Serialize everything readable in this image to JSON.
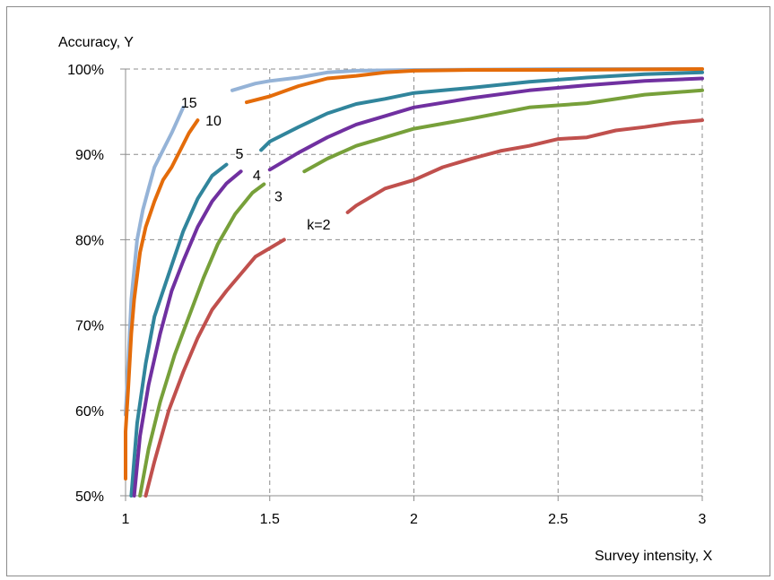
{
  "chart_data": {
    "type": "line",
    "xlabel": "Survey intensity, X",
    "ylabel": "Accuracy, Y",
    "xlim": [
      1,
      3
    ],
    "ylim": [
      0.5,
      1.0
    ],
    "x_ticks": [
      "1",
      "1.5",
      "2",
      "2.5",
      "3"
    ],
    "y_ticks": [
      "50%",
      "60%",
      "70%",
      "80%",
      "90%",
      "100%"
    ],
    "grid": "dashed",
    "legend": "inline labels",
    "series": [
      {
        "name": "15",
        "label_text": "15",
        "color": "#95B3D7",
        "points": [
          [
            1.0,
            0.595
          ],
          [
            1.01,
            0.66
          ],
          [
            1.02,
            0.73
          ],
          [
            1.04,
            0.8
          ],
          [
            1.06,
            0.835
          ],
          [
            1.08,
            0.86
          ],
          [
            1.1,
            0.885
          ],
          [
            1.13,
            0.905
          ],
          [
            1.16,
            0.925
          ],
          [
            1.18,
            0.94
          ],
          [
            1.2,
            0.955
          ]
        ],
        "points_b": [
          [
            1.37,
            0.975
          ],
          [
            1.45,
            0.983
          ],
          [
            1.5,
            0.986
          ],
          [
            1.6,
            0.99
          ],
          [
            1.7,
            0.996
          ],
          [
            1.8,
            0.998
          ],
          [
            2.0,
            0.999
          ],
          [
            2.5,
            1.0
          ],
          [
            3.0,
            1.0
          ]
        ]
      },
      {
        "name": "10",
        "label_text": "10",
        "color": "#E46C0A",
        "points": [
          [
            1.0,
            0.52
          ],
          [
            1.0,
            0.575
          ],
          [
            1.01,
            0.63
          ],
          [
            1.02,
            0.69
          ],
          [
            1.03,
            0.73
          ],
          [
            1.05,
            0.785
          ],
          [
            1.07,
            0.815
          ],
          [
            1.1,
            0.845
          ],
          [
            1.13,
            0.87
          ],
          [
            1.16,
            0.885
          ],
          [
            1.19,
            0.905
          ],
          [
            1.22,
            0.925
          ],
          [
            1.25,
            0.94
          ]
        ],
        "points_b": [
          [
            1.42,
            0.961
          ],
          [
            1.5,
            0.968
          ],
          [
            1.6,
            0.98
          ],
          [
            1.7,
            0.989
          ],
          [
            1.8,
            0.992
          ],
          [
            1.9,
            0.996
          ],
          [
            2.0,
            0.998
          ],
          [
            2.2,
            0.999
          ],
          [
            2.5,
            0.999
          ],
          [
            3.0,
            1.0
          ]
        ]
      },
      {
        "name": "5",
        "label_text": "5",
        "color": "#31859C",
        "points": [
          [
            1.02,
            0.5
          ],
          [
            1.04,
            0.585
          ],
          [
            1.07,
            0.655
          ],
          [
            1.1,
            0.71
          ],
          [
            1.15,
            0.76
          ],
          [
            1.2,
            0.81
          ],
          [
            1.25,
            0.848
          ],
          [
            1.3,
            0.875
          ],
          [
            1.35,
            0.888
          ]
        ],
        "points_b": [
          [
            1.47,
            0.905
          ],
          [
            1.5,
            0.915
          ],
          [
            1.6,
            0.932
          ],
          [
            1.7,
            0.948
          ],
          [
            1.8,
            0.959
          ],
          [
            1.9,
            0.965
          ],
          [
            2.0,
            0.972
          ],
          [
            2.2,
            0.978
          ],
          [
            2.4,
            0.985
          ],
          [
            2.6,
            0.99
          ],
          [
            2.8,
            0.994
          ],
          [
            3.0,
            0.996
          ]
        ]
      },
      {
        "name": "4",
        "label_text": "4",
        "color": "#7030A0",
        "points": [
          [
            1.03,
            0.5
          ],
          [
            1.05,
            0.57
          ],
          [
            1.08,
            0.63
          ],
          [
            1.12,
            0.69
          ],
          [
            1.16,
            0.74
          ],
          [
            1.2,
            0.775
          ],
          [
            1.25,
            0.815
          ],
          [
            1.3,
            0.845
          ],
          [
            1.35,
            0.866
          ],
          [
            1.4,
            0.88
          ]
        ],
        "points_b": [
          [
            1.5,
            0.882
          ],
          [
            1.6,
            0.902
          ],
          [
            1.7,
            0.92
          ],
          [
            1.8,
            0.935
          ],
          [
            1.9,
            0.945
          ],
          [
            2.0,
            0.955
          ],
          [
            2.2,
            0.966
          ],
          [
            2.4,
            0.975
          ],
          [
            2.6,
            0.981
          ],
          [
            2.8,
            0.986
          ],
          [
            3.0,
            0.989
          ]
        ]
      },
      {
        "name": "3",
        "label_text": "3",
        "color": "#77A03A",
        "points": [
          [
            1.05,
            0.5
          ],
          [
            1.08,
            0.555
          ],
          [
            1.12,
            0.61
          ],
          [
            1.17,
            0.665
          ],
          [
            1.22,
            0.71
          ],
          [
            1.27,
            0.755
          ],
          [
            1.32,
            0.795
          ],
          [
            1.38,
            0.83
          ],
          [
            1.44,
            0.855
          ],
          [
            1.48,
            0.865
          ]
        ],
        "points_b": [
          [
            1.62,
            0.88
          ],
          [
            1.7,
            0.895
          ],
          [
            1.8,
            0.91
          ],
          [
            1.9,
            0.92
          ],
          [
            2.0,
            0.93
          ],
          [
            2.2,
            0.942
          ],
          [
            2.4,
            0.955
          ],
          [
            2.6,
            0.96
          ],
          [
            2.8,
            0.97
          ],
          [
            3.0,
            0.975
          ]
        ]
      },
      {
        "name": "k=2",
        "label_text": "k=2",
        "color": "#C0504D",
        "points": [
          [
            1.07,
            0.5
          ],
          [
            1.1,
            0.54
          ],
          [
            1.15,
            0.6
          ],
          [
            1.2,
            0.645
          ],
          [
            1.25,
            0.685
          ],
          [
            1.3,
            0.718
          ],
          [
            1.35,
            0.74
          ],
          [
            1.4,
            0.76
          ],
          [
            1.45,
            0.78
          ],
          [
            1.5,
            0.79
          ],
          [
            1.55,
            0.8
          ]
        ],
        "points_b": [
          [
            1.77,
            0.832
          ],
          [
            1.8,
            0.84
          ],
          [
            1.9,
            0.86
          ],
          [
            2.0,
            0.87
          ],
          [
            2.1,
            0.885
          ],
          [
            2.2,
            0.895
          ],
          [
            2.3,
            0.904
          ],
          [
            2.4,
            0.91
          ],
          [
            2.5,
            0.918
          ],
          [
            2.6,
            0.92
          ],
          [
            2.7,
            0.928
          ],
          [
            2.8,
            0.932
          ],
          [
            2.9,
            0.937
          ],
          [
            3.0,
            0.94
          ]
        ]
      }
    ]
  }
}
